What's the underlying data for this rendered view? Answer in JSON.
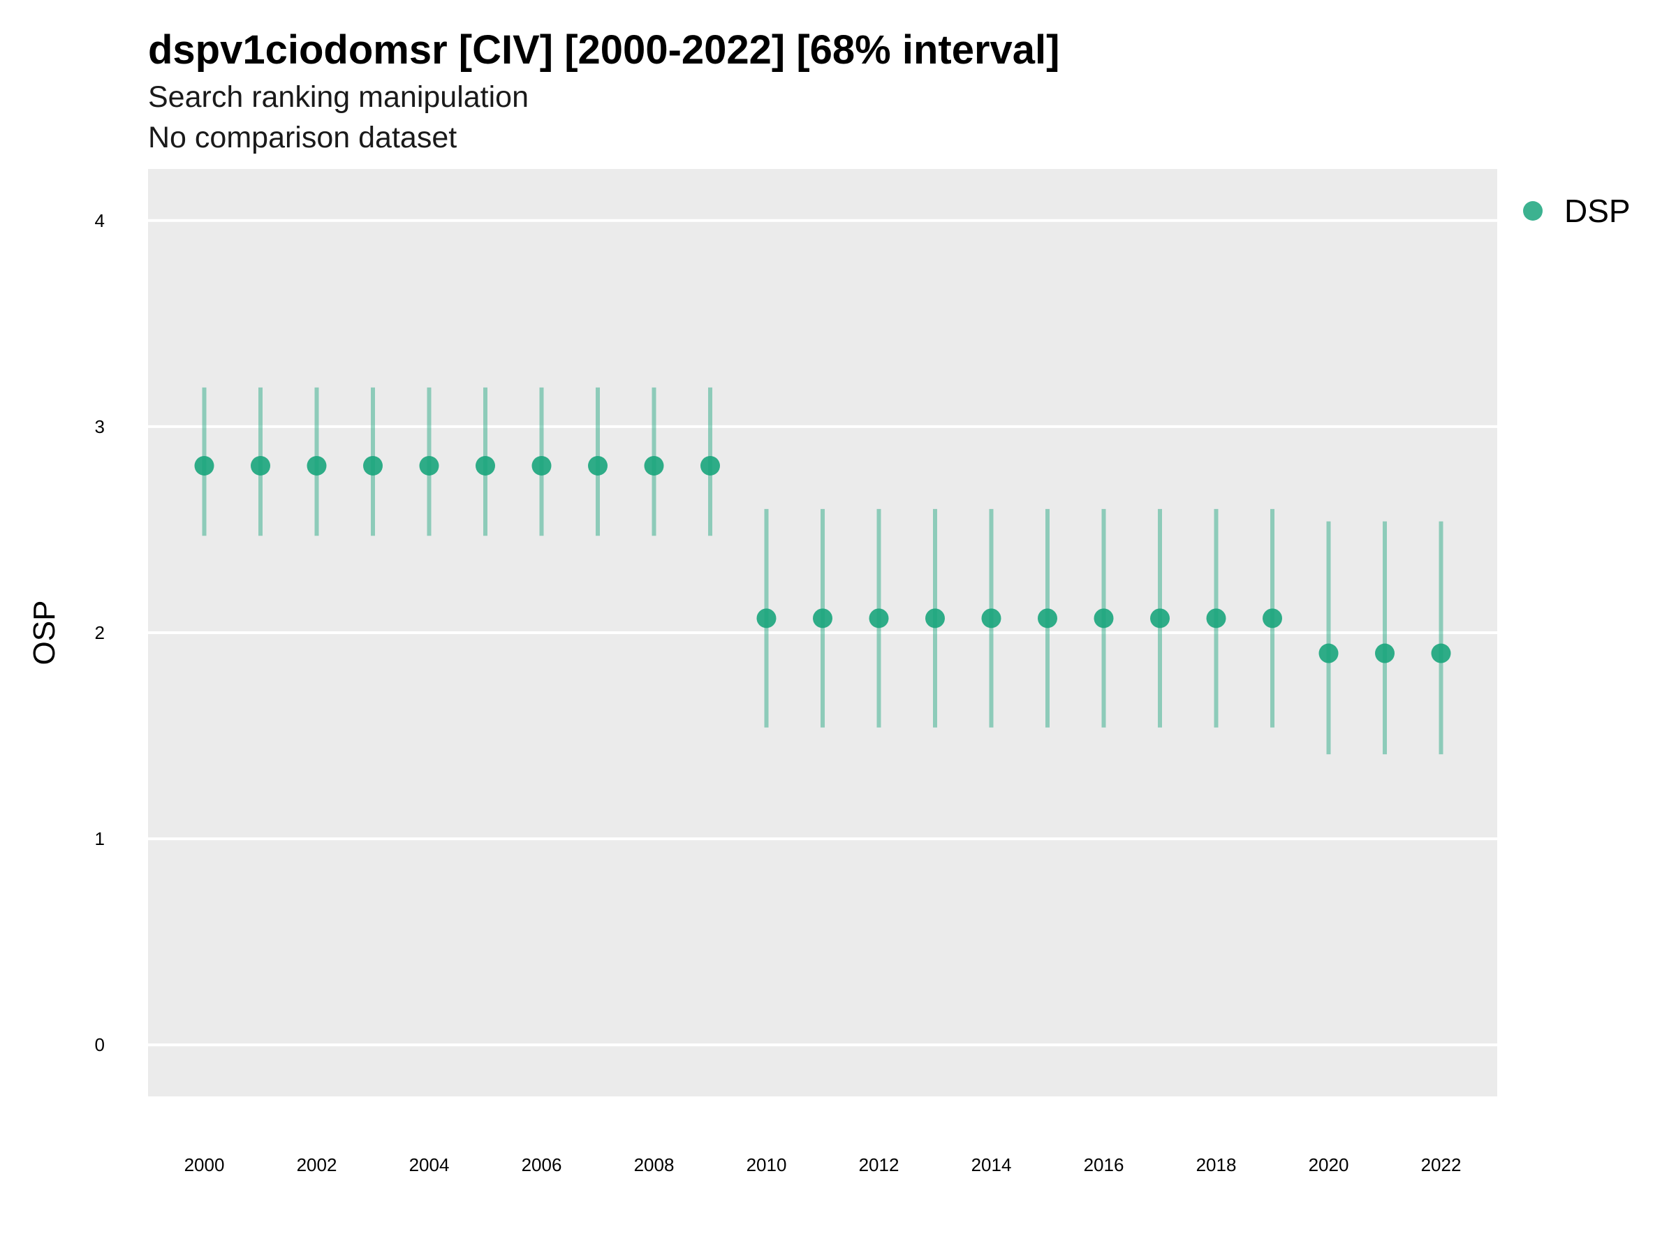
{
  "title": "dspv1ciodomsr [CIV] [2000-2022] [68% interval]",
  "subtitle": "Search ranking manipulation",
  "caption": "No comparison dataset",
  "chart_data": {
    "type": "scatter",
    "title": "dspv1ciodomsr [CIV] [2000-2022] [68% interval]",
    "subtitle": "Search ranking manipulation",
    "ylabel": "OSP",
    "xlabel": "",
    "ylim": [
      -0.25,
      4.25
    ],
    "xlim": [
      1999,
      2023
    ],
    "yticks": [
      0,
      1,
      2,
      3,
      4
    ],
    "xticks": [
      2000,
      2002,
      2004,
      2006,
      2008,
      2010,
      2012,
      2014,
      2016,
      2018,
      2020,
      2022
    ],
    "grid": true,
    "legend_position": "top-right",
    "series": [
      {
        "name": "DSP",
        "color": "#1aa57c",
        "x": [
          2000,
          2001,
          2002,
          2003,
          2004,
          2005,
          2006,
          2007,
          2008,
          2009,
          2010,
          2011,
          2012,
          2013,
          2014,
          2015,
          2016,
          2017,
          2018,
          2019,
          2020,
          2021,
          2022
        ],
        "y": [
          2.81,
          2.81,
          2.81,
          2.81,
          2.81,
          2.81,
          2.81,
          2.81,
          2.81,
          2.81,
          2.07,
          2.07,
          2.07,
          2.07,
          2.07,
          2.07,
          2.07,
          2.07,
          2.07,
          2.07,
          1.9,
          1.9,
          1.9
        ],
        "lower": [
          2.47,
          2.47,
          2.47,
          2.47,
          2.47,
          2.47,
          2.47,
          2.47,
          2.47,
          2.47,
          1.54,
          1.54,
          1.54,
          1.54,
          1.54,
          1.54,
          1.54,
          1.54,
          1.54,
          1.54,
          1.41,
          1.41,
          1.41
        ],
        "upper": [
          3.19,
          3.19,
          3.19,
          3.19,
          3.19,
          3.19,
          3.19,
          3.19,
          3.19,
          3.19,
          2.6,
          2.6,
          2.6,
          2.6,
          2.6,
          2.6,
          2.6,
          2.6,
          2.6,
          2.6,
          2.54,
          2.54,
          2.54
        ]
      }
    ]
  }
}
